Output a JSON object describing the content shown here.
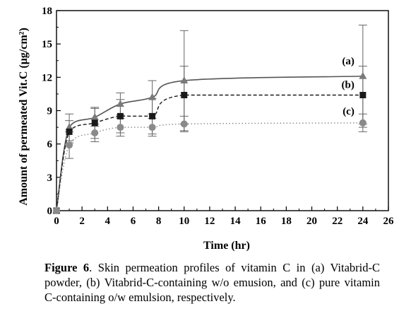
{
  "chart_data": {
    "type": "line",
    "xlabel": "Time (hr)",
    "ylabel": "Amount of permeated Vit.C (μg/cm²)",
    "xlim": [
      0,
      26
    ],
    "ylim": [
      0,
      18
    ],
    "xticks": [
      0,
      2,
      4,
      6,
      8,
      10,
      12,
      14,
      16,
      18,
      20,
      22,
      24,
      26
    ],
    "yticks": [
      0,
      3,
      6,
      9,
      12,
      15,
      18
    ],
    "grid": false,
    "x": [
      0,
      1,
      3,
      5,
      7.5,
      10,
      24
    ],
    "series": [
      {
        "name": "(a)",
        "marker": "triangle",
        "line": "solid",
        "color": "#7a7a7a",
        "values": [
          0,
          7.5,
          8.4,
          9.6,
          10.2,
          11.7,
          12.1
        ],
        "errors": [
          0,
          1.2,
          0.8,
          1.0,
          1.5,
          4.5,
          4.6
        ]
      },
      {
        "name": "(b)",
        "marker": "square",
        "line": "dashed",
        "color": "#1a1a1a",
        "values": [
          0,
          7.1,
          7.9,
          8.5,
          8.5,
          10.4,
          10.4
        ],
        "errors": [
          0,
          1.0,
          1.4,
          1.5,
          1.6,
          2.6,
          2.6
        ]
      },
      {
        "name": "(c)",
        "marker": "circle",
        "line": "dotted",
        "color": "#8a8a8a",
        "values": [
          0,
          5.9,
          7.0,
          7.5,
          7.5,
          7.8,
          7.9
        ],
        "errors": [
          0,
          1.2,
          0.8,
          0.8,
          0.8,
          0.7,
          0.8
        ]
      }
    ]
  },
  "caption": {
    "label": "Figure 6",
    "text": ". Skin permeation profiles of vitamin C in (a) Vitabrid-C powder, (b) Vitabrid-C-containing w/o emusion, and (c) pure vitamin C-containing o/w emulsion, respectively."
  }
}
